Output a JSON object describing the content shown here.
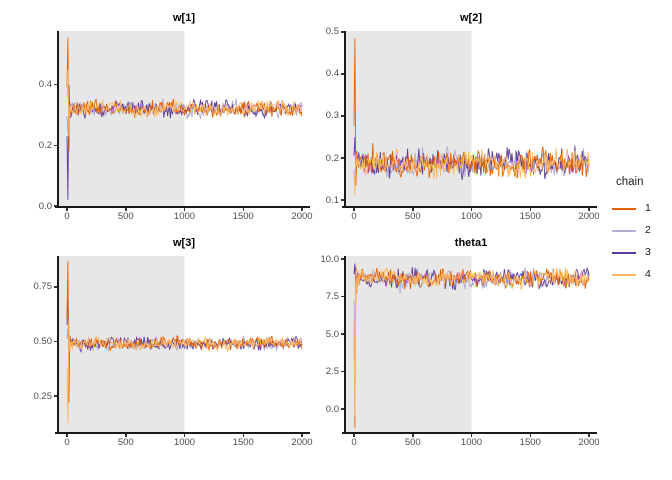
{
  "figure": {
    "description": "MCMC trace plots, 4 chains, warmup region shaded",
    "background": "#ffffff"
  },
  "style_colors": {
    "warmup_shade": "#e7e7e7",
    "axis_line": "#1a1a1a",
    "tick_label": "#4d4d4d",
    "panel_title": "#000000"
  },
  "legend": {
    "title": "chain",
    "entries": [
      {
        "label": "1",
        "color": "#e66101"
      },
      {
        "label": "2",
        "color": "#b2abd2"
      },
      {
        "label": "3",
        "color": "#5e3c99"
      },
      {
        "label": "4",
        "color": "#fdb863"
      }
    ]
  },
  "chart_data": [
    {
      "type": "line",
      "title": "w[1]",
      "x_domain": [
        0,
        2000
      ],
      "warmup_interval": [
        0,
        1000
      ],
      "y_range": [
        0.0,
        0.577
      ],
      "x_ticks": [
        {
          "label": "0",
          "value": 0
        },
        {
          "label": "500",
          "value": 500
        },
        {
          "label": "1000",
          "value": 1000
        },
        {
          "label": "1500",
          "value": 1500
        },
        {
          "label": "2000",
          "value": 2000
        }
      ],
      "y_ticks": [
        {
          "label": "0.0",
          "value": 0.0
        },
        {
          "label": "0.2",
          "value": 0.2
        },
        {
          "label": "0.4",
          "value": 0.4
        }
      ],
      "chains": [
        {
          "name": "1",
          "start_value": 0.555,
          "rebound_value": 0.18,
          "stationary_mean": 0.32,
          "noise_halfwidth": 0.022
        },
        {
          "name": "2",
          "start_value": 0.24,
          "rebound_value": 0.36,
          "stationary_mean": 0.32,
          "noise_halfwidth": 0.022
        },
        {
          "name": "3",
          "start_value": 0.02,
          "rebound_value": 0.4,
          "stationary_mean": 0.32,
          "noise_halfwidth": 0.022
        },
        {
          "name": "4",
          "start_value": 0.45,
          "rebound_value": 0.23,
          "stationary_mean": 0.32,
          "noise_halfwidth": 0.022
        }
      ]
    },
    {
      "type": "line",
      "title": "w[2]",
      "x_domain": [
        0,
        2000
      ],
      "warmup_interval": [
        0,
        1000
      ],
      "y_range": [
        0.086,
        0.502
      ],
      "x_ticks": [
        {
          "label": "0",
          "value": 0
        },
        {
          "label": "500",
          "value": 500
        },
        {
          "label": "1000",
          "value": 1000
        },
        {
          "label": "1500",
          "value": 1500
        },
        {
          "label": "2000",
          "value": 2000
        }
      ],
      "y_ticks": [
        {
          "label": "0.1",
          "value": 0.1
        },
        {
          "label": "0.2",
          "value": 0.2
        },
        {
          "label": "0.3",
          "value": 0.3
        },
        {
          "label": "0.4",
          "value": 0.4
        },
        {
          "label": "0.5",
          "value": 0.5
        }
      ],
      "chains": [
        {
          "name": "1",
          "start_value": 0.485,
          "rebound_value": 0.135,
          "stationary_mean": 0.187,
          "noise_halfwidth": 0.027
        },
        {
          "name": "2",
          "start_value": 0.14,
          "rebound_value": 0.21,
          "stationary_mean": 0.187,
          "noise_halfwidth": 0.027
        },
        {
          "name": "3",
          "start_value": 0.25,
          "rebound_value": 0.155,
          "stationary_mean": 0.187,
          "noise_halfwidth": 0.027
        },
        {
          "name": "4",
          "start_value": 0.112,
          "rebound_value": 0.21,
          "stationary_mean": 0.187,
          "noise_halfwidth": 0.027
        }
      ]
    },
    {
      "type": "line",
      "title": "w[3]",
      "x_domain": [
        0,
        2000
      ],
      "warmup_interval": [
        0,
        1000
      ],
      "y_range": [
        0.085,
        0.892
      ],
      "x_ticks": [
        {
          "label": "0",
          "value": 0
        },
        {
          "label": "500",
          "value": 500
        },
        {
          "label": "1000",
          "value": 1000
        },
        {
          "label": "1500",
          "value": 1500
        },
        {
          "label": "2000",
          "value": 2000
        }
      ],
      "y_ticks": [
        {
          "label": "0.25",
          "value": 0.25
        },
        {
          "label": "0.50",
          "value": 0.5
        },
        {
          "label": "0.75",
          "value": 0.75
        }
      ],
      "chains": [
        {
          "name": "1",
          "start_value": 0.87,
          "rebound_value": 0.22,
          "stationary_mean": 0.49,
          "noise_halfwidth": 0.024
        },
        {
          "name": "2",
          "start_value": 0.56,
          "rebound_value": 0.45,
          "stationary_mean": 0.49,
          "noise_halfwidth": 0.024
        },
        {
          "name": "3",
          "start_value": 0.775,
          "rebound_value": 0.4,
          "stationary_mean": 0.49,
          "noise_halfwidth": 0.024
        },
        {
          "name": "4",
          "start_value": 0.125,
          "rebound_value": 0.6,
          "stationary_mean": 0.49,
          "noise_halfwidth": 0.024
        }
      ]
    },
    {
      "type": "line",
      "title": "theta1",
      "x_domain": [
        0,
        2000
      ],
      "warmup_interval": [
        0,
        1000
      ],
      "y_range": [
        -1.53,
        10.2
      ],
      "x_ticks": [
        {
          "label": "0",
          "value": 0
        },
        {
          "label": "500",
          "value": 500
        },
        {
          "label": "1000",
          "value": 1000
        },
        {
          "label": "1500",
          "value": 1500
        },
        {
          "label": "2000",
          "value": 2000
        }
      ],
      "y_ticks": [
        {
          "label": "0.0",
          "value": 0.0
        },
        {
          "label": "2.5",
          "value": 2.5
        },
        {
          "label": "5.0",
          "value": 5.0
        },
        {
          "label": "7.5",
          "value": 7.5
        },
        {
          "label": "10.0",
          "value": 10.0
        }
      ],
      "chains": [
        {
          "name": "1",
          "start_value": -1.25,
          "rebound_value": 9.45,
          "stationary_mean": 8.7,
          "noise_halfwidth": 0.52
        },
        {
          "name": "2",
          "start_value": 4.0,
          "rebound_value": 8.3,
          "stationary_mean": 8.7,
          "noise_halfwidth": 0.52
        },
        {
          "name": "3",
          "start_value": 9.7,
          "rebound_value": 7.8,
          "stationary_mean": 8.7,
          "noise_halfwidth": 0.52
        },
        {
          "name": "4",
          "start_value": -0.5,
          "rebound_value": 9.2,
          "stationary_mean": 8.7,
          "noise_halfwidth": 0.52
        }
      ]
    }
  ]
}
